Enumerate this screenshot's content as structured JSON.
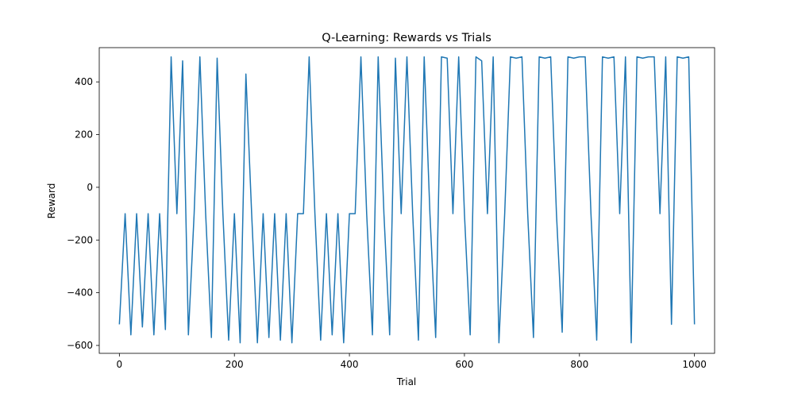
{
  "chart_data": {
    "type": "line",
    "title": "Q-Learning: Rewards vs Trials",
    "xlabel": "Trial",
    "ylabel": "Reward",
    "xlim": [
      -35,
      1035
    ],
    "ylim": [
      -630,
      530
    ],
    "xticks": [
      0,
      200,
      400,
      600,
      800,
      1000
    ],
    "yticks": [
      -600,
      -400,
      -200,
      0,
      200,
      400
    ],
    "grid": false,
    "series_color": "#1f77b4",
    "series": [
      {
        "name": "",
        "x_start": 0,
        "x_step": 10,
        "values": [
          -520,
          -100,
          -560,
          -100,
          -530,
          -100,
          -560,
          -100,
          -540,
          495,
          -100,
          480,
          -560,
          -100,
          495,
          -100,
          -570,
          490,
          -100,
          -580,
          -100,
          -590,
          430,
          -100,
          -590,
          -100,
          -570,
          -100,
          -580,
          -100,
          -590,
          -100,
          -100,
          495,
          -100,
          -580,
          -100,
          -560,
          -100,
          -590,
          -100,
          -100,
          495,
          -100,
          -560,
          495,
          -100,
          -560,
          490,
          -100,
          495,
          -100,
          -580,
          495,
          -100,
          -570,
          495,
          490,
          -100,
          495,
          -100,
          -560,
          495,
          480,
          -100,
          495,
          -590,
          -100,
          495,
          490,
          495,
          -100,
          -570,
          495,
          490,
          495,
          -100,
          -550,
          495,
          490,
          495,
          495,
          -100,
          -580,
          495,
          490,
          495,
          -100,
          495,
          -590,
          495,
          490,
          495,
          495,
          -100,
          495,
          -520,
          495,
          490,
          495,
          -520
        ]
      }
    ]
  }
}
